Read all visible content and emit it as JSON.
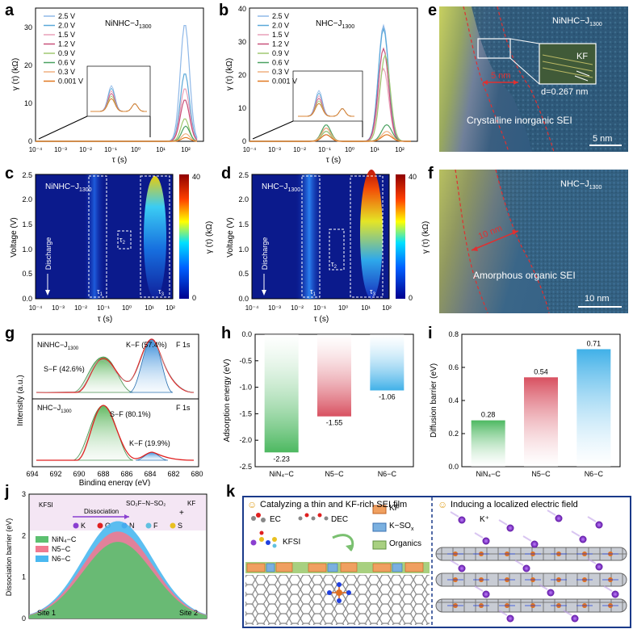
{
  "panels": {
    "a": {
      "letter": "a",
      "title": "NiNHC−J",
      "sub": "1300",
      "ylabel": "γ (τ) (kΩ)",
      "xlabel": "τ (s)",
      "legend": [
        "2.5 V",
        "2.0 V",
        "1.5 V",
        "1.2 V",
        "0.9 V",
        "0.6 V",
        "0.3 V",
        "0.001 V"
      ],
      "legend_colors": [
        "#8fb8e8",
        "#5aa8d8",
        "#e8a0b8",
        "#c8507a",
        "#a0c870",
        "#4aa060",
        "#f0b080",
        "#e07820"
      ],
      "yticks": [
        "0",
        "10",
        "20",
        "30"
      ],
      "xticks": [
        "10⁻⁴",
        "10⁻³",
        "10⁻²",
        "10⁻¹",
        "10⁰",
        "10¹",
        "10²"
      ]
    },
    "b": {
      "letter": "b",
      "title": "NHC−J",
      "sub": "1300",
      "ylabel": "γ (τ) (kΩ)",
      "xlabel": "τ (s)",
      "legend": [
        "2.5 V",
        "2.0 V",
        "1.5 V",
        "1.2 V",
        "0.9 V",
        "0.6 V",
        "0.3 V",
        "0.001 V"
      ],
      "yticks": [
        "0",
        "10",
        "20",
        "30",
        "40"
      ]
    },
    "c": {
      "letter": "c",
      "title": "NiNHC−J",
      "sub": "1300",
      "ylabel": "Voltage (V)",
      "xlabel": "τ (s)",
      "side": "Discharge",
      "yticks": [
        "0.0",
        "0.5",
        "1.0",
        "1.5",
        "2.0",
        "2.5"
      ],
      "tau1": "τ",
      "tau2": "τ",
      "tau3": "τ",
      "s1": "1",
      "s2": "2",
      "s3": "3",
      "cbar_label": "γ (τ) (kΩ)",
      "cbar_max": "40",
      "cbar_min": "0"
    },
    "d": {
      "letter": "d",
      "title": "NHC−J",
      "sub": "1300",
      "ylabel": "Voltage (V)",
      "xlabel": "τ (s)",
      "side": "Discharge",
      "cbar_label": "γ (τ) (kΩ)",
      "cbar_max": "40",
      "cbar_min": "0"
    },
    "e": {
      "letter": "e",
      "title": "NiNHC−J",
      "sub": "1300",
      "inset": "KF",
      "thickness": "5 nm",
      "d": "d=0.267 nm",
      "caption": "Crystalline inorganic SEI",
      "scale": "5 nm"
    },
    "f": {
      "letter": "f",
      "title": "NHC−J",
      "sub": "1300",
      "thickness": "10 nm",
      "caption": "Amorphous organic SEI",
      "scale": "10 nm"
    },
    "g": {
      "letter": "g",
      "top_title": "NiNHC−J",
      "sub": "1300",
      "f1s": "F 1s",
      "kf_top": "K−F (57.4%)",
      "sf_top": "S−F (42.6%)",
      "bot_title": "NHC−J",
      "sf_bot": "S−F (80.1%)",
      "kf_bot": "K−F (19.9%)",
      "ylabel": "Intensity (a.u.)",
      "xlabel": "Binding energy (eV)",
      "xticks": [
        "694",
        "692",
        "690",
        "688",
        "686",
        "684",
        "682",
        "680"
      ]
    },
    "j": {
      "letter": "j",
      "ylabel": "Dissociation barrier (eV)",
      "kfsi": "KFSI",
      "dissoc": "Dissociation",
      "product": "SO₂F−N−SO₂",
      "kf": "KF",
      "plus": "+",
      "atoms": [
        "K",
        "O",
        "N",
        "F",
        "S"
      ],
      "atom_colors": [
        "#8a3fd0",
        "#e02020",
        "#2040e0",
        "#60c0e0",
        "#e8c020"
      ],
      "series": [
        "NiN₄−C",
        "N5−C",
        "N6−C"
      ],
      "site1": "Site 1",
      "site2": "Site 2",
      "yticks": [
        "0",
        "1",
        "2",
        "3"
      ]
    },
    "k": {
      "letter": "k",
      "left_title": "Catalyzing a thin and KF-rich SEI film",
      "right_title": "Inducing a localized electric field",
      "ec": "EC",
      "dec": "DEC",
      "kfsi": "KFSI",
      "legend": [
        "KF",
        "K−SO",
        "Organics"
      ],
      "kso_sub": "x",
      "kplus": "K⁺"
    }
  },
  "chart_data": [
    {
      "type": "bar",
      "id": "h",
      "categories": [
        "NiN₄−C",
        "N5−C",
        "N6−C"
      ],
      "values": [
        -2.23,
        -1.55,
        -1.06
      ],
      "labels": [
        "-2.23",
        "-1.55",
        "-1.06"
      ],
      "ylabel": "Adsorption energy (eV)",
      "ylim": [
        -2.5,
        0
      ],
      "yticks": [
        "0.0",
        "-0.5",
        "-1.0",
        "-1.5",
        "-2.0",
        "-2.5"
      ],
      "colors": [
        "#4cb860",
        "#d85060",
        "#40b0e8"
      ],
      "letter": "h"
    },
    {
      "type": "bar",
      "id": "i",
      "categories": [
        "NiN₄−C",
        "N5−C",
        "N6−C"
      ],
      "values": [
        0.28,
        0.54,
        0.71
      ],
      "labels": [
        "0.28",
        "0.54",
        "0.71"
      ],
      "ylabel": "Diffusion barrier (eV)",
      "ylim": [
        0,
        0.8
      ],
      "yticks": [
        "0.0",
        "0.2",
        "0.4",
        "0.6",
        "0.8"
      ],
      "colors": [
        "#4cb860",
        "#d85060",
        "#40b0e8"
      ],
      "letter": "i"
    },
    {
      "type": "area",
      "id": "j",
      "series": [
        {
          "name": "N6−C",
          "peak": 2.35
        },
        {
          "name": "N5−C",
          "peak": 2.1
        },
        {
          "name": "NiN₄−C",
          "peak": 1.85
        }
      ],
      "ylim": [
        0,
        3
      ]
    }
  ]
}
